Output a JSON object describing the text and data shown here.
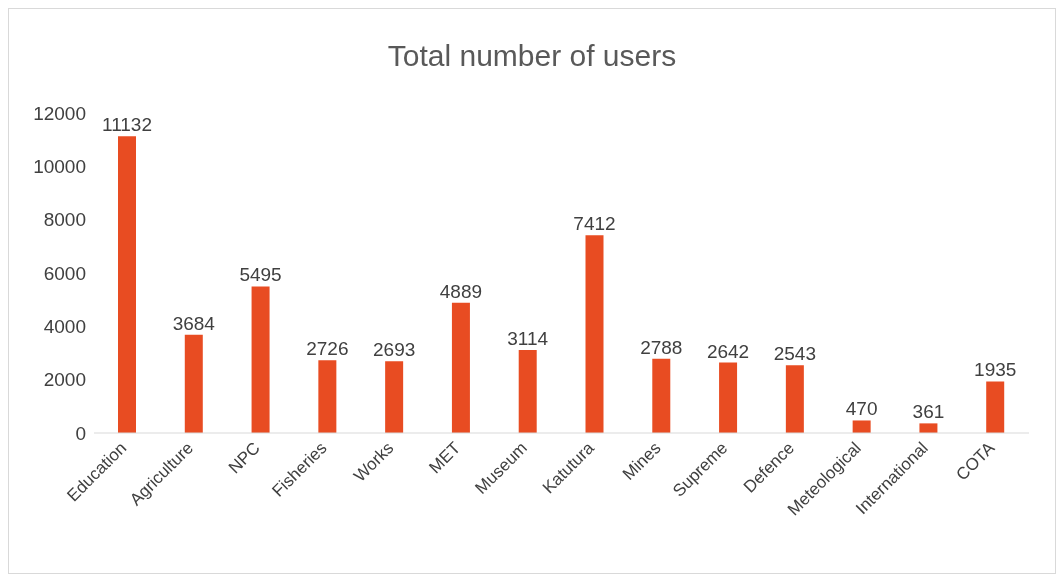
{
  "chart_data": {
    "type": "bar",
    "title": "Total number of users",
    "categories": [
      "Education",
      "Agriculture",
      "NPC",
      "Fisheries",
      "Works",
      "MET",
      "Museum",
      "Katutura",
      "Mines",
      "Supreme",
      "Defence",
      "Meteological",
      "International",
      "COTA"
    ],
    "values": [
      11132,
      3684,
      5495,
      2726,
      2693,
      4889,
      3114,
      7412,
      2788,
      2642,
      2543,
      470,
      361,
      1935
    ],
    "color": "#e84c22",
    "ylim": [
      0,
      12000
    ],
    "yticks": [
      0,
      2000,
      4000,
      6000,
      8000,
      10000,
      12000
    ],
    "grid": false,
    "data_labels": true
  }
}
